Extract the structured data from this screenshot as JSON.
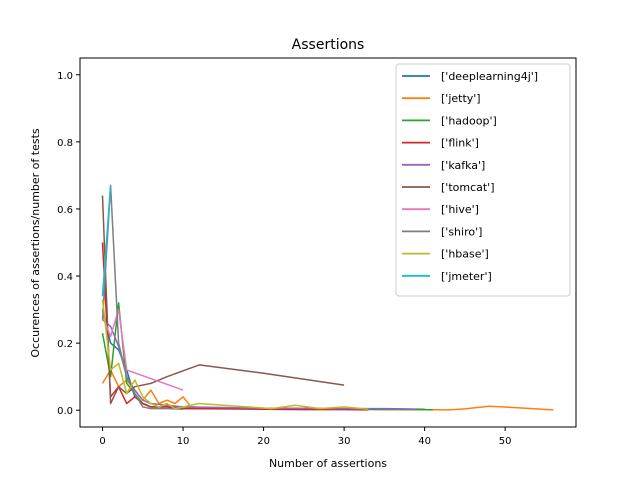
{
  "chart_data": {
    "type": "line",
    "title": "Assertions",
    "xlabel": "Number of assertions",
    "ylabel": "Occurences of assertions/number of tests",
    "xlim": [
      -2.8,
      58.8
    ],
    "ylim": [
      -0.05,
      1.05
    ],
    "xticks": [
      0,
      10,
      20,
      30,
      40,
      50
    ],
    "yticks": [
      0.0,
      0.2,
      0.4,
      0.6,
      0.8,
      1.0
    ],
    "xtick_labels": [
      "0",
      "10",
      "20",
      "30",
      "40",
      "50"
    ],
    "ytick_labels": [
      "0.0",
      "0.2",
      "0.4",
      "0.6",
      "0.8",
      "1.0"
    ],
    "grid": false,
    "legend_position": "top-right",
    "series": [
      {
        "name": "['deeplearning4j']",
        "color": "#1f77b4",
        "points": [
          [
            0,
            0.3
          ],
          [
            1,
            0.2
          ],
          [
            2,
            0.18
          ],
          [
            3,
            0.12
          ],
          [
            4,
            0.04
          ],
          [
            5,
            0.02
          ],
          [
            6,
            0.01
          ],
          [
            8,
            0.01
          ],
          [
            10,
            0.01
          ],
          [
            15,
            0.005
          ],
          [
            20,
            0.005
          ],
          [
            25,
            0.005
          ],
          [
            30,
            0.005
          ],
          [
            35,
            0.005
          ],
          [
            40,
            0.003
          ]
        ]
      },
      {
        "name": "['jetty']",
        "color": "#ff7f0e",
        "points": [
          [
            0,
            0.08
          ],
          [
            1,
            0.12
          ],
          [
            2,
            0.07
          ],
          [
            3,
            0.09
          ],
          [
            4,
            0.06
          ],
          [
            5,
            0.03
          ],
          [
            6,
            0.06
          ],
          [
            7,
            0.02
          ],
          [
            8,
            0.03
          ],
          [
            9,
            0.02
          ],
          [
            10,
            0.04
          ],
          [
            11,
            0.01
          ],
          [
            15,
            0.005
          ],
          [
            20,
            0.005
          ],
          [
            25,
            0.005
          ],
          [
            30,
            0.003
          ],
          [
            35,
            0.003
          ],
          [
            40,
            0.002
          ],
          [
            43,
            0.001
          ],
          [
            45,
            0.004
          ],
          [
            48,
            0.012
          ],
          [
            51,
            0.008
          ],
          [
            56,
            0.001
          ]
        ]
      },
      {
        "name": "['hadoop']",
        "color": "#2ca02c",
        "points": [
          [
            0,
            0.23
          ],
          [
            1,
            0.1
          ],
          [
            2,
            0.32
          ],
          [
            3,
            0.08
          ],
          [
            4,
            0.05
          ],
          [
            5,
            0.02
          ],
          [
            6,
            0.01
          ],
          [
            8,
            0.01
          ],
          [
            10,
            0.005
          ],
          [
            15,
            0.005
          ],
          [
            20,
            0.004
          ],
          [
            25,
            0.003
          ],
          [
            30,
            0.003
          ],
          [
            35,
            0.002
          ],
          [
            40,
            0.002
          ],
          [
            41,
            0.001
          ]
        ]
      },
      {
        "name": "['flink']",
        "color": "#d62728",
        "points": [
          [
            0,
            0.5
          ],
          [
            1,
            0.04
          ],
          [
            2,
            0.07
          ],
          [
            3,
            0.02
          ],
          [
            4,
            0.04
          ],
          [
            5,
            0.02
          ],
          [
            6,
            0.01
          ],
          [
            8,
            0.01
          ],
          [
            10,
            0.005
          ],
          [
            15,
            0.004
          ],
          [
            20,
            0.003
          ],
          [
            25,
            0.002
          ],
          [
            30,
            0.002
          ],
          [
            33,
            0.001
          ]
        ]
      },
      {
        "name": "['kafka']",
        "color": "#9467bd",
        "points": [
          [
            0,
            0.27
          ],
          [
            1,
            0.25
          ],
          [
            2,
            0.19
          ],
          [
            3,
            0.1
          ],
          [
            4,
            0.06
          ],
          [
            5,
            0.03
          ],
          [
            6,
            0.02
          ],
          [
            8,
            0.015
          ],
          [
            10,
            0.01
          ],
          [
            15,
            0.008
          ],
          [
            20,
            0.006
          ],
          [
            25,
            0.006
          ],
          [
            30,
            0.005
          ],
          [
            35,
            0.004
          ],
          [
            39,
            0.003
          ]
        ]
      },
      {
        "name": "['tomcat']",
        "color": "#8c564b",
        "points": [
          [
            0,
            0.64
          ],
          [
            1,
            0.02
          ],
          [
            2,
            0.07
          ],
          [
            3,
            0.05
          ],
          [
            4,
            0.07
          ],
          [
            6,
            0.08
          ],
          [
            8,
            0.1
          ],
          [
            12,
            0.135
          ],
          [
            20,
            0.11
          ],
          [
            30,
            0.075
          ]
        ]
      },
      {
        "name": "['hive']",
        "color": "#e377c2",
        "points": [
          [
            0,
            0.28
          ],
          [
            1,
            0.22
          ],
          [
            2,
            0.3
          ],
          [
            3,
            0.12
          ],
          [
            10,
            0.06
          ]
        ]
      },
      {
        "name": "['shiro']",
        "color": "#7f7f7f",
        "points": [
          [
            0,
            0.27
          ],
          [
            1,
            0.67
          ],
          [
            2,
            0.2
          ],
          [
            3,
            0.1
          ],
          [
            4,
            0.05
          ],
          [
            5,
            0.01
          ],
          [
            6,
            0.005
          ],
          [
            8,
            0.005
          ],
          [
            10,
            0.003
          ]
        ]
      },
      {
        "name": "['hbase']",
        "color": "#bcbd22",
        "points": [
          [
            0,
            0.33
          ],
          [
            1,
            0.12
          ],
          [
            2,
            0.14
          ],
          [
            3,
            0.05
          ],
          [
            4,
            0.09
          ],
          [
            5,
            0.04
          ],
          [
            6,
            0.02
          ],
          [
            7,
            0.01
          ],
          [
            8,
            0.02
          ],
          [
            9,
            0.005
          ],
          [
            10,
            0.01
          ],
          [
            12,
            0.02
          ],
          [
            15,
            0.015
          ],
          [
            18,
            0.01
          ],
          [
            21,
            0.005
          ],
          [
            24,
            0.015
          ],
          [
            27,
            0.005
          ],
          [
            30,
            0.01
          ],
          [
            33,
            0.003
          ]
        ]
      },
      {
        "name": "['jmeter']",
        "color": "#17becf",
        "points": [
          [
            0,
            0.34
          ],
          [
            1,
            0.67
          ]
        ]
      }
    ]
  }
}
